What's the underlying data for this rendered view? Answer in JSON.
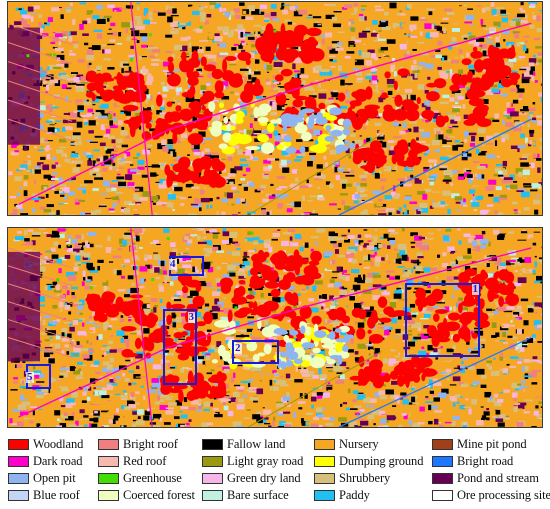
{
  "legend": {
    "items": [
      {
        "label": "Woodland",
        "color": "#ff0000"
      },
      {
        "label": "Bright roof",
        "color": "#f08080"
      },
      {
        "label": "Fallow land",
        "color": "#000000"
      },
      {
        "label": "Nursery",
        "color": "#f5a623"
      },
      {
        "label": "Mine pit pond",
        "color": "#a0401a"
      },
      {
        "label": "Dark road",
        "color": "#ff00cc"
      },
      {
        "label": "Red roof",
        "color": "#f7b8b0"
      },
      {
        "label": "Light gray road",
        "color": "#9a9a10"
      },
      {
        "label": "Dumping ground",
        "color": "#ffff00"
      },
      {
        "label": "Bright road",
        "color": "#1e78ff"
      },
      {
        "label": "Open pit",
        "color": "#8fb4f0"
      },
      {
        "label": "Greenhouse",
        "color": "#44dd00"
      },
      {
        "label": "Green dry land",
        "color": "#f7b6e8"
      },
      {
        "label": "Shrubbery",
        "color": "#d8c07a"
      },
      {
        "label": "Pond and stream",
        "color": "#660055"
      },
      {
        "label": "Blue roof",
        "color": "#c4d4f4"
      },
      {
        "label": "Coerced forest",
        "color": "#eeffc0"
      },
      {
        "label": "Bare surface",
        "color": "#bff0e0"
      },
      {
        "label": "Paddy",
        "color": "#22c0f0"
      },
      {
        "label": "Ore processing site",
        "color": "#ffffff"
      }
    ]
  },
  "regions": [
    {
      "label": "1"
    },
    {
      "label": "2"
    },
    {
      "label": "3"
    },
    {
      "label": "4"
    },
    {
      "label": "5"
    }
  ]
}
